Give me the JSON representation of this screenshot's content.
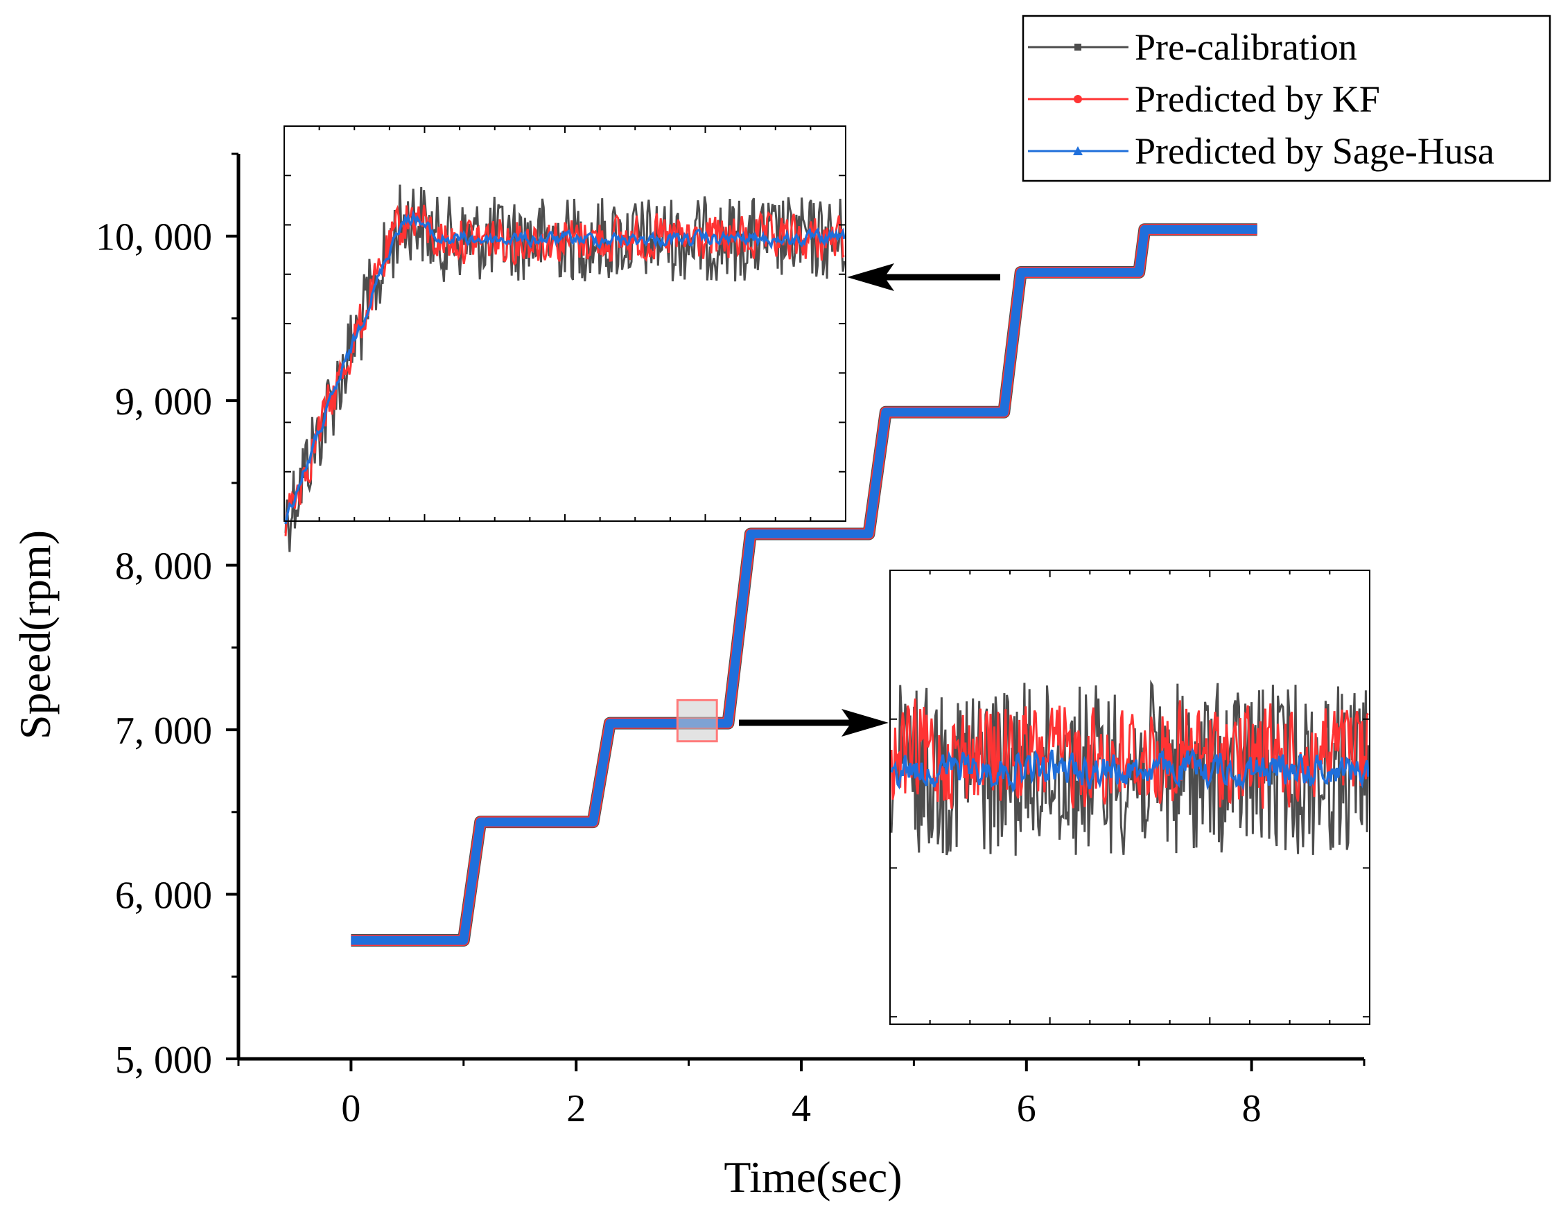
{
  "chart_data": {
    "type": "line",
    "xlabel": "Time(sec)",
    "ylabel": "Speed(rpm)",
    "xlim": [
      -1,
      9
    ],
    "ylim": [
      5000,
      10500
    ],
    "xticks": [
      0,
      2,
      4,
      6,
      8
    ],
    "xtick_labels": [
      "0",
      "2",
      "4",
      "6",
      "8"
    ],
    "yticks": [
      5000,
      6000,
      7000,
      8000,
      9000,
      10000
    ],
    "ytick_labels": [
      "5, 000",
      "6, 000",
      "7, 000",
      "8, 000",
      "9, 000",
      "10, 000"
    ],
    "legend_position": "top-right",
    "series": [
      {
        "name": "Pre-calibration",
        "color": "#4d4d4d",
        "marker": "square"
      },
      {
        "name": "Predicted by KF",
        "color": "#ff3333",
        "marker": "circle"
      },
      {
        "name": "Predicted by Sage-Husa",
        "color": "#1f6fdb",
        "marker": "triangle"
      }
    ],
    "steps": [
      {
        "t_start": 0.0,
        "t_end": 1.0,
        "speed": 5720
      },
      {
        "t_start": 1.15,
        "t_end": 2.15,
        "speed": 6440
      },
      {
        "t_start": 2.3,
        "t_end": 3.35,
        "speed": 7040
      },
      {
        "t_start": 3.55,
        "t_end": 4.6,
        "speed": 8190
      },
      {
        "t_start": 4.75,
        "t_end": 5.8,
        "speed": 8930
      },
      {
        "t_start": 5.95,
        "t_end": 7.0,
        "speed": 9780
      },
      {
        "t_start": 7.05,
        "t_end": 8.05,
        "speed": 10040
      }
    ],
    "zoom_region": {
      "t_range": [
        2.9,
        3.25
      ],
      "speed_range": [
        6930,
        7180
      ]
    },
    "insets": [
      {
        "name": "upper-left inset",
        "detail": "rise and settle of step near 9,780 rpm"
      },
      {
        "name": "lower-right inset",
        "detail": "steady-state noise near 7,040 rpm"
      }
    ]
  }
}
